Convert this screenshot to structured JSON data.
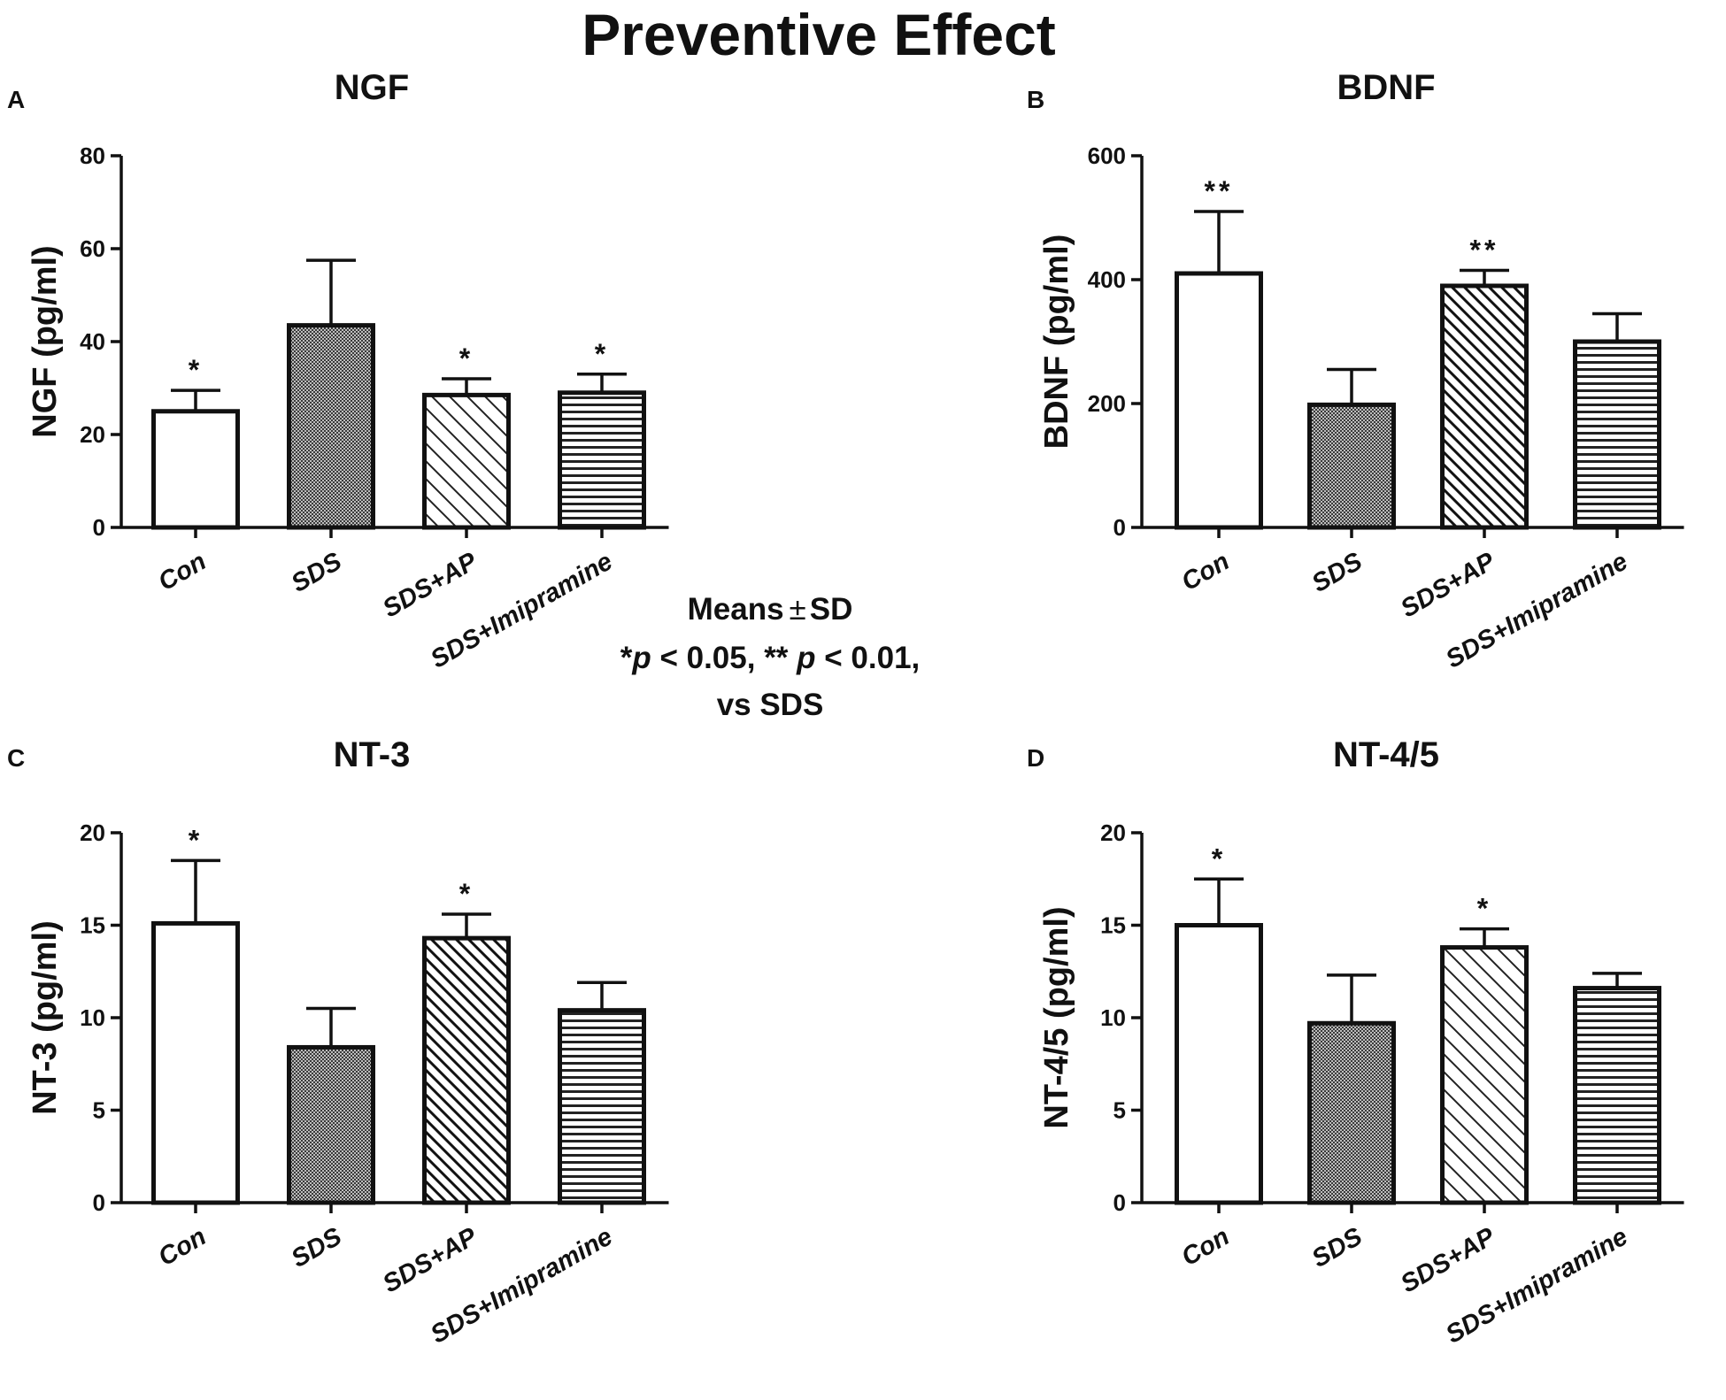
{
  "figure_title": "Preventive Effect",
  "note": {
    "line1_prefix": "Means",
    "pm": "±",
    "line1_suffix": "SD",
    "star1": "*",
    "p1": "p",
    "cmp1": " < 0.05, ",
    "star2": "**",
    "p2": " p",
    "cmp2": " < 0.01,",
    "line3": "vs SDS"
  },
  "chart_data": [
    {
      "panel": "A",
      "type": "bar",
      "title": "NGF",
      "ylabel": "NGF (pg/ml)",
      "ylim": [
        0,
        80
      ],
      "yticks": [
        0,
        20,
        40,
        60,
        80
      ],
      "categories": [
        "Con",
        "SDS",
        "SDS+AP",
        "SDS+Imipramine"
      ],
      "values": [
        25,
        43.5,
        28.5,
        29
      ],
      "errors": [
        4.5,
        14,
        3.5,
        4
      ],
      "significance": [
        "*",
        "",
        "*",
        "*"
      ],
      "patterns": [
        "open",
        "dotted",
        "diag-sparse",
        "horizontal"
      ]
    },
    {
      "panel": "B",
      "type": "bar",
      "title": "BDNF",
      "ylabel": "BDNF (pg/ml)",
      "ylim": [
        0,
        600
      ],
      "yticks": [
        0,
        200,
        400,
        600
      ],
      "categories": [
        "Con",
        "SDS",
        "SDS+AP",
        "SDS+Imipramine"
      ],
      "values": [
        410,
        198,
        390,
        300
      ],
      "errors": [
        100,
        57,
        25,
        45
      ],
      "significance": [
        "**",
        "",
        "**",
        ""
      ],
      "patterns": [
        "open",
        "dotted",
        "diag-dense",
        "horizontal"
      ]
    },
    {
      "panel": "C",
      "type": "bar",
      "title": "NT-3",
      "ylabel": "NT-3 (pg/ml)",
      "ylim": [
        0,
        20
      ],
      "yticks": [
        0,
        5,
        10,
        15,
        20
      ],
      "categories": [
        "Con",
        "SDS",
        "SDS+AP",
        "SDS+Imipramine"
      ],
      "values": [
        15.1,
        8.4,
        14.3,
        10.4
      ],
      "errors": [
        3.4,
        2.1,
        1.3,
        1.5
      ],
      "significance": [
        "*",
        "",
        "*",
        ""
      ],
      "patterns": [
        "open",
        "dotted",
        "diag-dense",
        "horizontal"
      ]
    },
    {
      "panel": "D",
      "type": "bar",
      "title": "NT-4/5",
      "ylabel": "NT-4/5 (pg/ml)",
      "ylim": [
        0,
        20
      ],
      "yticks": [
        0,
        5,
        10,
        15,
        20
      ],
      "categories": [
        "Con",
        "SDS",
        "SDS+AP",
        "SDS+Imipramine"
      ],
      "values": [
        15,
        9.7,
        13.8,
        11.6
      ],
      "errors": [
        2.5,
        2.6,
        1,
        0.8
      ],
      "significance": [
        "*",
        "",
        "*",
        ""
      ],
      "patterns": [
        "open",
        "dotted",
        "diag-sparse",
        "horizontal"
      ]
    }
  ]
}
